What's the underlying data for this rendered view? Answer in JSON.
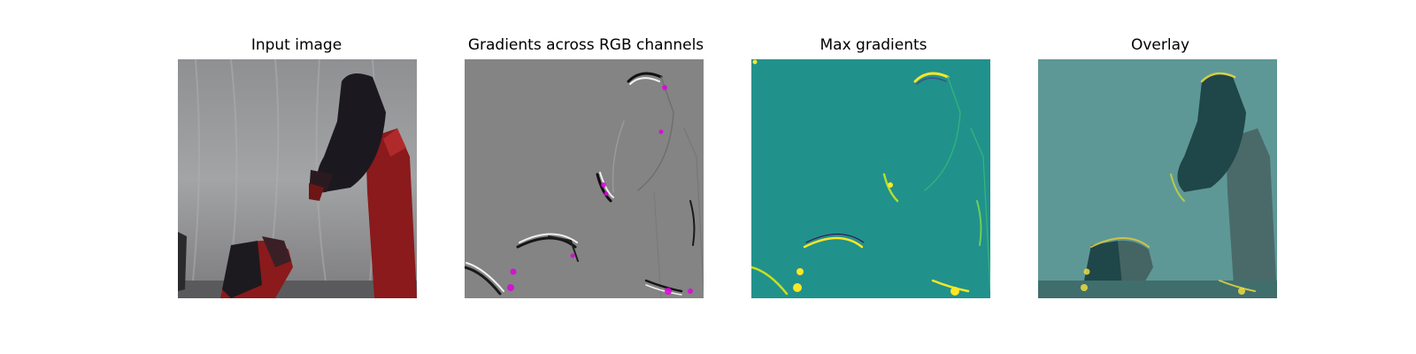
{
  "figure": {
    "panels": [
      {
        "title": "Input image"
      },
      {
        "title": "Gradients across RGB channels"
      },
      {
        "title": "Max gradients"
      },
      {
        "title": "Overlay"
      }
    ]
  },
  "colors": {
    "background": "#ffffff",
    "curtain": "#9c9d9f",
    "robot_red": "#8a1a1c",
    "robot_dark": "#1c1820",
    "gradient_gray": "#848484",
    "gradient_magenta": "#e000e0",
    "viridis_teal": "#21918c",
    "viridis_yellow": "#fde725",
    "overlay_tint": "#4f8c8a"
  }
}
